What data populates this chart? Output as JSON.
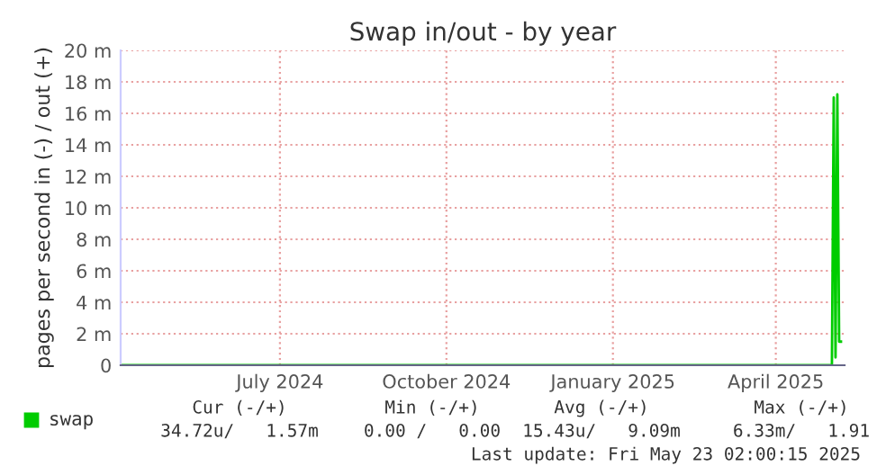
{
  "chart_data": {
    "type": "line",
    "title": "Swap in/out - by year",
    "ylabel": "pages per second in (-) / out (+)",
    "x": [
      "2024-04-18",
      "2025-05-16",
      "2025-05-17",
      "2025-05-18",
      "2025-05-19",
      "2025-05-20",
      "2025-05-21"
    ],
    "series": [
      {
        "name": "swap",
        "color": "#00cc00",
        "values": [
          0,
          0,
          17,
          0.5,
          17.2,
          1.5,
          1.5
        ]
      }
    ],
    "xlim": [
      "2024-04-18",
      "2025-05-23"
    ],
    "xticks": [
      {
        "value": "2024-07-15",
        "label": "July 2024"
      },
      {
        "value": "2024-10-15",
        "label": "October 2024"
      },
      {
        "value": "2025-01-15",
        "label": "January 2025"
      },
      {
        "value": "2025-04-15",
        "label": "April 2025"
      }
    ],
    "ylim": [
      0,
      20
    ],
    "yticks": [
      0,
      {
        "value": 2,
        "label": "2 m"
      },
      {
        "value": 4,
        "label": "4 m"
      },
      {
        "value": 6,
        "label": "6 m"
      },
      {
        "value": 8,
        "label": "8 m"
      },
      {
        "value": 10,
        "label": "10 m"
      },
      {
        "value": 12,
        "label": "12 m"
      },
      {
        "value": 14,
        "label": "14 m"
      },
      {
        "value": 16,
        "label": "16 m"
      },
      {
        "value": 18,
        "label": "18 m"
      },
      {
        "value": 20,
        "label": "20 m"
      }
    ],
    "grid": true,
    "legend": "bottom left",
    "annotations": [
      "Cur (-/+)",
      "Min (-/+)",
      "Avg (-/+)",
      "Max (-/+)",
      "34.72u/   1.57m",
      "0.00 /   0.00",
      "15.43u/   9.09m",
      "6.33m/   1.91",
      "Last update: Fri May 23 02:00:15 2025"
    ]
  }
}
